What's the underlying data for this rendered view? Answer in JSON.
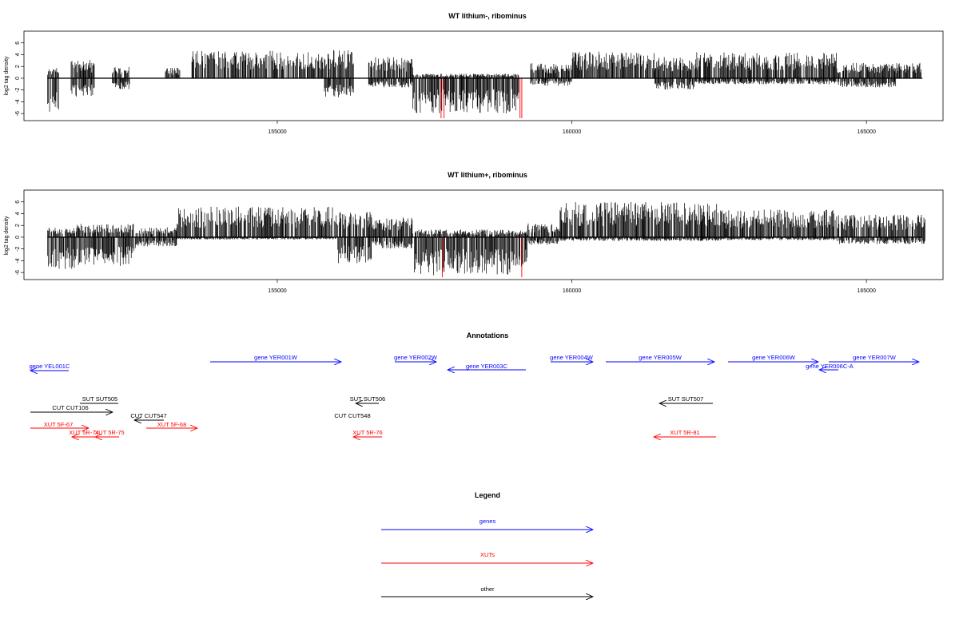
{
  "chart_data": [
    {
      "type": "bar",
      "title": "WT lithium-, ribominus",
      "ylabel": "log2 tag density",
      "xlim": [
        150700,
        166300
      ],
      "ylim": [
        -7.2,
        8
      ],
      "xticks": [
        155000,
        160000,
        165000
      ],
      "yticks": [
        -6,
        -4,
        -2,
        0,
        2,
        4,
        6
      ],
      "series_colors": {
        "default": "#000000",
        "highlight": "#ff0000"
      },
      "segments": [
        {
          "start": 151100,
          "end": 151300,
          "plus": 1.4,
          "minus": -4.5
        },
        {
          "start": 151500,
          "end": 151900,
          "plus": 2.4,
          "minus": -2.4
        },
        {
          "start": 152200,
          "end": 152500,
          "plus": 1.5,
          "minus": -1.5
        },
        {
          "start": 153100,
          "end": 153350,
          "plus": 1.4,
          "minus": 0
        },
        {
          "start": 153550,
          "end": 155800,
          "plus": 3.6,
          "minus": 0
        },
        {
          "start": 155800,
          "end": 156300,
          "plus": 3.8,
          "minus": -2.5
        },
        {
          "start": 156550,
          "end": 157300,
          "plus": 2.8,
          "minus": -1.2
        },
        {
          "start": 157300,
          "end": 159100,
          "plus": 0.6,
          "minus": -4.6
        },
        {
          "start": 159300,
          "end": 160000,
          "plus": 2.0,
          "minus": -1.0
        },
        {
          "start": 160000,
          "end": 161400,
          "plus": 3.5,
          "minus": 0
        },
        {
          "start": 161400,
          "end": 162100,
          "plus": 2.8,
          "minus": -1.5
        },
        {
          "start": 162100,
          "end": 164500,
          "plus": 3.4,
          "minus": -0.8
        },
        {
          "start": 164500,
          "end": 165500,
          "plus": 2.0,
          "minus": -1.2
        },
        {
          "start": 165500,
          "end": 165950,
          "plus": 2.1,
          "minus": 0
        }
      ],
      "highlights": [
        157780,
        157830,
        159120,
        159150
      ]
    },
    {
      "type": "bar",
      "title": "WT lithium+, ribominus",
      "ylabel": "log2 tag density",
      "xlim": [
        150700,
        166300
      ],
      "ylim": [
        -7.2,
        8
      ],
      "xticks": [
        155000,
        160000,
        165000
      ],
      "yticks": [
        -6,
        -4,
        -2,
        0,
        2,
        4,
        6
      ],
      "series_colors": {
        "default": "#000000",
        "highlight": "#ff0000"
      },
      "segments": [
        {
          "start": 151100,
          "end": 151600,
          "plus": 1.4,
          "minus": -4.2
        },
        {
          "start": 151600,
          "end": 152600,
          "plus": 1.8,
          "minus": -3.8
        },
        {
          "start": 152600,
          "end": 153300,
          "plus": 1.3,
          "minus": -1.2
        },
        {
          "start": 153300,
          "end": 156000,
          "plus": 4.0,
          "minus": -0.3
        },
        {
          "start": 156000,
          "end": 156600,
          "plus": 3.3,
          "minus": -3.5
        },
        {
          "start": 156600,
          "end": 157300,
          "plus": 2.6,
          "minus": -1.5
        },
        {
          "start": 157300,
          "end": 159250,
          "plus": 1.0,
          "minus": -5.0
        },
        {
          "start": 159250,
          "end": 159800,
          "plus": 1.8,
          "minus": -1.0
        },
        {
          "start": 159800,
          "end": 162500,
          "plus": 4.6,
          "minus": -0.5
        },
        {
          "start": 162500,
          "end": 164500,
          "plus": 3.6,
          "minus": -0.4
        },
        {
          "start": 164500,
          "end": 166000,
          "plus": 3.0,
          "minus": -0.9
        }
      ],
      "highlights": [
        157800,
        159150
      ]
    }
  ],
  "annotations": {
    "title": "Annotations",
    "features": [
      {
        "label": "gene YEL001C",
        "start": 151100,
        "end": 150700,
        "row": 2,
        "color": "#0000ff"
      },
      {
        "label": "gene YER001W",
        "start": 153050,
        "end": 157350,
        "row": 0,
        "color": "#0000ff"
      },
      {
        "label": "gene YER002W",
        "start": 157550,
        "end": 158900,
        "row": 0,
        "color": "#0000ff"
      },
      {
        "label": "gene YER003C",
        "start": 162350,
        "end": 159800,
        "row": 1,
        "color": "#0000ff",
        "ref": "gene YER003C"
      },
      {
        "label": "gene YER004W",
        "start": 160000,
        "end": 161400,
        "row": 0,
        "color": "#0000ff"
      },
      {
        "label": "gene YER005W",
        "start": 161300,
        "end": 164800,
        "row": 0,
        "color": "#0000ff"
      },
      {
        "label": "gene YER006W",
        "start": 165000,
        "end": 165900,
        "row": 0,
        "color": "#0000ff"
      },
      {
        "label": "gene YER007W",
        "start": 165900,
        "end": 166500,
        "row": 0,
        "color": "#0000ff"
      },
      {
        "label": "gene YER006C-A",
        "start": 165900,
        "end": 165100,
        "row": 1,
        "color": "#0000ff"
      }
    ]
  },
  "annot_labels": {
    "yel001c": "gene YEL001C",
    "yer001w": "gene YER001W",
    "yer002w": "gene YER002W",
    "yer003c": "gene YER003C",
    "yer004w": "gene YER004W",
    "yer005w": "gene YER005W",
    "yer006w": "gene YER006W",
    "yer007w": "gene YER007W",
    "yer006ca": "gene YER006C-A",
    "sut505": "SUT SUT505",
    "sut506": "SUT SUT506",
    "sut507": "SUT SUT507",
    "cut106": "CUT CUT106",
    "cut547": "CUT CUT547",
    "cut548": "CUT CUT548",
    "xut5f67": "XUT 5F-67",
    "xut5r74": "XUT 5R-74",
    "xut5r75": "XUT 5R-75",
    "xut5f68": "XUT 5F-68",
    "xut5r76": "XUT 5R-76",
    "xut5r81": "XUT 5R-81"
  },
  "legend": {
    "title": "Legend",
    "items": [
      {
        "label": "genes",
        "color": "#0000ff"
      },
      {
        "label": "XUTs",
        "color": "#ff0000"
      },
      {
        "label": "other",
        "color": "#000000"
      }
    ]
  }
}
